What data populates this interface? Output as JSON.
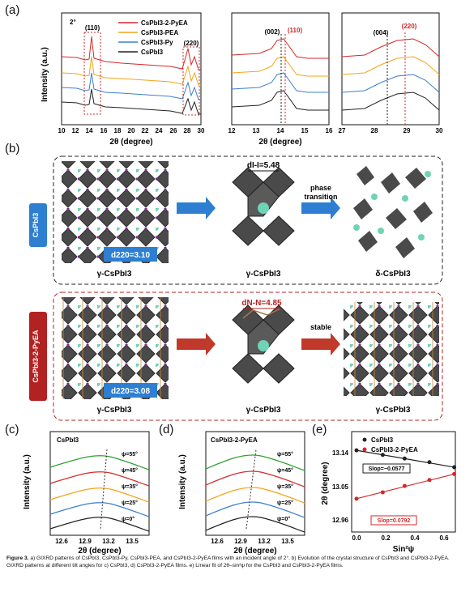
{
  "panels": {
    "a": "(a)",
    "b": "(b)",
    "c": "(c)",
    "d": "(d)",
    "e": "(e)"
  },
  "panel_a": {
    "incident_angle": "2°",
    "ylabel": "Intensity (a.u.)",
    "xlabel": "2θ (degree)",
    "legend": [
      "CsPbI3-2-PyEA",
      "CsPbI3-PEA",
      "CsPbI3-Py",
      "CsPbI3"
    ],
    "peak_labels": {
      "p110": "(110)",
      "p220": "(220)",
      "p002": "(002)",
      "p004": "(004)"
    },
    "ticks_left": [
      "10",
      "12",
      "14",
      "16",
      "18",
      "20",
      "22",
      "24",
      "26",
      "28",
      "30"
    ],
    "ticks_mid": [
      "12",
      "13",
      "14",
      "15",
      "16"
    ],
    "ticks_right": [
      "27",
      "28",
      "29",
      "30"
    ]
  },
  "panel_b": {
    "top_side_label": "CsPbI3",
    "bottom_side_label": "CsPbI3-2-PyEA",
    "top_d220": "d220=3.10",
    "bottom_d220": "d220=3.08",
    "dII": "dI-I=5.48",
    "dNN": "dN-N=4.85",
    "arrow1_text_top": "phase",
    "arrow1_text_bottom": "transition",
    "arrow2_text": "stable",
    "labels_top": [
      "γ-CsPbI3",
      "γ-CsPbI3",
      "δ-CsPbI3"
    ],
    "labels_bottom": [
      "γ-CsPbI3",
      "γ-CsPbI3",
      "γ-CsPbI3"
    ]
  },
  "panel_c": {
    "title": "CsPbI3",
    "ylabel": "Intensity (a.u.)",
    "xlabel": "2θ (degree)",
    "psi": [
      "ψ=55°",
      "ψ=45°",
      "ψ=35°",
      "ψ=25°",
      "ψ=0°"
    ],
    "ticks": [
      "12.6",
      "12.9",
      "13.2",
      "13.5"
    ]
  },
  "panel_d": {
    "title": "CsPbI3-2-PyEA",
    "ylabel": "Intensity (a.u.)",
    "xlabel": "2θ (degree)",
    "psi": [
      "ψ=55°",
      "ψ=45°",
      "ψ=35°",
      "ψ=25°",
      "ψ=0°"
    ],
    "ticks": [
      "12.6",
      "12.9",
      "13.2",
      "13.5"
    ]
  },
  "chart_data": [
    {
      "type": "line",
      "ylabel": "Intensity (a.u.)",
      "xlabel": "2θ (degree)",
      "xlim": [
        10,
        30
      ],
      "series": [
        {
          "name": "CsPbI3-2-PyEA",
          "color": "#d62728"
        },
        {
          "name": "CsPbI3-PEA",
          "color": "#f2a51a"
        },
        {
          "name": "CsPbI3-Py",
          "color": "#3b7fd0"
        },
        {
          "name": "CsPbI3",
          "color": "#222222"
        }
      ],
      "peaks": [
        14.2,
        28.8
      ]
    },
    {
      "type": "scatter",
      "xlabel": "Sin²ψ",
      "ylabel": "2θ (degree)",
      "xlim": [
        0.0,
        0.7
      ],
      "ylim": [
        12.95,
        13.17
      ],
      "yticks": [
        "12.96",
        "13.05",
        "13.14"
      ],
      "xticks": [
        "0.0",
        "0.2",
        "0.4",
        "0.6"
      ],
      "series": [
        {
          "name": "CsPbI3",
          "color": "#222222",
          "x": [
            0.0,
            0.18,
            0.33,
            0.5,
            0.67
          ],
          "y": [
            13.129,
            13.119,
            13.111,
            13.103,
            13.092
          ]
        },
        {
          "name": "CsPbI3-2-PyEA",
          "color": "#d62728",
          "x": [
            0.0,
            0.18,
            0.33,
            0.5,
            0.67
          ],
          "y": [
            13.023,
            13.037,
            13.051,
            13.064,
            13.077
          ]
        }
      ],
      "annotations": [
        "Slop=−0.0577",
        "Slop=0.0792"
      ]
    }
  ],
  "caption": {
    "bold": "Figure 3.",
    "text": " a) GIXRD patterns of CsPbI3, CsPbI3-Py, CsPbI3-PEA, and CsPbI3-2-PyEA films with an incident angle of 2°. b) Evolution of the crystal structure of CsPbI3 and CsPbI3-2-PyEA. GIXRD patterns at different tilt angles for c) CsPbI3, d) CsPbI3-2-PyEA films. e) Linear fit of 2θ–sin²ψ for the CsPbI3 and CsPbI3-2-PyEA films."
  }
}
